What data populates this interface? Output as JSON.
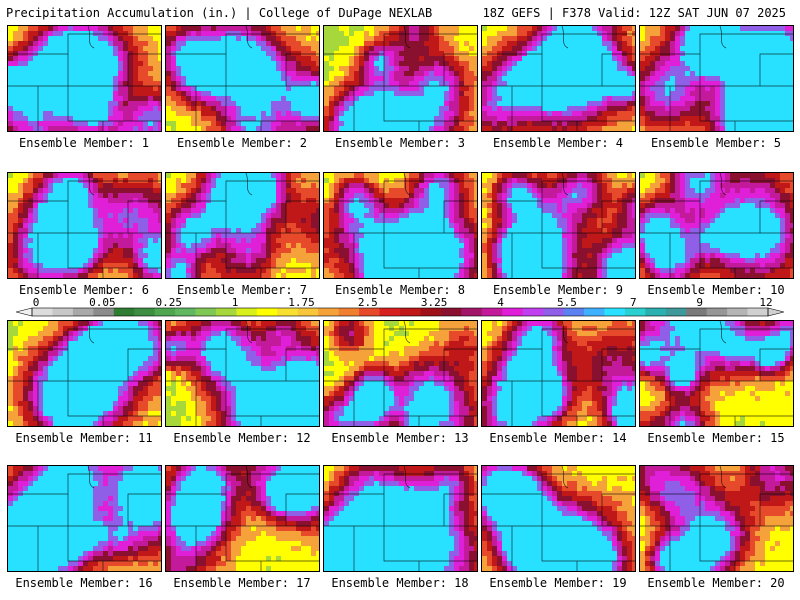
{
  "header": {
    "title": "Precipitation Accumulation (in.) | College of DuPage NEXLAB",
    "run_info": "18Z GEFS | F378 Valid: 12Z SAT JUN 07 2025"
  },
  "colorbar": {
    "labels": [
      "0",
      "0.05",
      "0.25",
      "1",
      "1.75",
      "2.5",
      "3.25",
      "4",
      "5.5",
      "7",
      "9",
      "12"
    ],
    "colors": [
      "#dcdcdc",
      "#c8c8c8",
      "#a9a9a9",
      "#8c8c8c",
      "#2e7d32",
      "#3e8e41",
      "#4fa64f",
      "#62b862",
      "#80c854",
      "#a6d83c",
      "#d8f01e",
      "#ffff00",
      "#f8e030",
      "#f7c63a",
      "#f6a23a",
      "#f08030",
      "#e64a2b",
      "#d82020",
      "#c01818",
      "#a01018",
      "#8a1030",
      "#a2166a",
      "#c21a9a",
      "#e020d8",
      "#c040f0",
      "#8f5fe8",
      "#5b80f0",
      "#3fb0ff",
      "#28e0ff",
      "#2ad0d0",
      "#2ab0b0",
      "#3e9a9a",
      "#7a7a7a",
      "#969696",
      "#b4b4b4",
      "#d0d0d0"
    ]
  },
  "members": [
    {
      "label": "Ensemble Member: 1"
    },
    {
      "label": "Ensemble Member: 2"
    },
    {
      "label": "Ensemble Member: 3"
    },
    {
      "label": "Ensemble Member: 4"
    },
    {
      "label": "Ensemble Member: 5"
    },
    {
      "label": "Ensemble Member: 6"
    },
    {
      "label": "Ensemble Member: 7"
    },
    {
      "label": "Ensemble Member: 8"
    },
    {
      "label": "Ensemble Member: 9"
    },
    {
      "label": "Ensemble Member: 10"
    },
    {
      "label": "Ensemble Member: 11"
    },
    {
      "label": "Ensemble Member: 12"
    },
    {
      "label": "Ensemble Member: 13"
    },
    {
      "label": "Ensemble Member: 14"
    },
    {
      "label": "Ensemble Member: 15"
    },
    {
      "label": "Ensemble Member: 16"
    },
    {
      "label": "Ensemble Member: 17"
    },
    {
      "label": "Ensemble Member: 18"
    },
    {
      "label": "Ensemble Member: 19"
    },
    {
      "label": "Ensemble Member: 20"
    }
  ]
}
